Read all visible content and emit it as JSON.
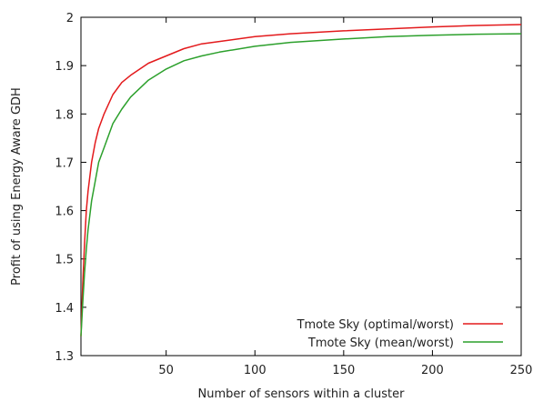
{
  "chart_data": {
    "type": "line",
    "title": "",
    "xlabel": "Number of sensors within a cluster",
    "ylabel": "Profit of using Energy Aware GDH",
    "xlim": [
      2,
      250
    ],
    "ylim": [
      1.3,
      2.0
    ],
    "x_ticks": [
      50,
      100,
      150,
      200,
      250
    ],
    "y_ticks": [
      1.3,
      1.4,
      1.5,
      1.6,
      1.7,
      1.8,
      1.9,
      2.0
    ],
    "x_tick_labels": [
      "50",
      "100",
      "150",
      "200",
      "250"
    ],
    "y_tick_labels": [
      "1.3",
      "1.4",
      "1.5",
      "1.6",
      "1.7",
      "1.8",
      "1.9",
      "2"
    ],
    "grid": false,
    "legend_position": "bottom-right",
    "series": [
      {
        "name": "Tmote Sky (optimal/worst)",
        "color": "#e31a1c",
        "x": [
          2,
          3,
          4,
          5,
          6,
          8,
          10,
          12,
          15,
          20,
          25,
          30,
          40,
          50,
          60,
          70,
          80,
          100,
          120,
          150,
          175,
          200,
          225,
          250
        ],
        "y": [
          1.34,
          1.45,
          1.53,
          1.6,
          1.64,
          1.7,
          1.74,
          1.77,
          1.8,
          1.84,
          1.865,
          1.88,
          1.905,
          1.92,
          1.935,
          1.945,
          1.95,
          1.96,
          1.966,
          1.972,
          1.976,
          1.98,
          1.983,
          1.985
        ]
      },
      {
        "name": "Tmote Sky (mean/worst)",
        "color": "#2ca02c",
        "x": [
          2,
          3,
          4,
          5,
          6,
          8,
          10,
          12,
          15,
          20,
          25,
          30,
          40,
          50,
          60,
          70,
          80,
          100,
          120,
          150,
          175,
          200,
          225,
          250
        ],
        "y": [
          1.34,
          1.41,
          1.47,
          1.52,
          1.56,
          1.62,
          1.66,
          1.7,
          1.73,
          1.78,
          1.81,
          1.835,
          1.87,
          1.893,
          1.91,
          1.92,
          1.928,
          1.94,
          1.948,
          1.955,
          1.96,
          1.963,
          1.965,
          1.966
        ]
      }
    ]
  }
}
